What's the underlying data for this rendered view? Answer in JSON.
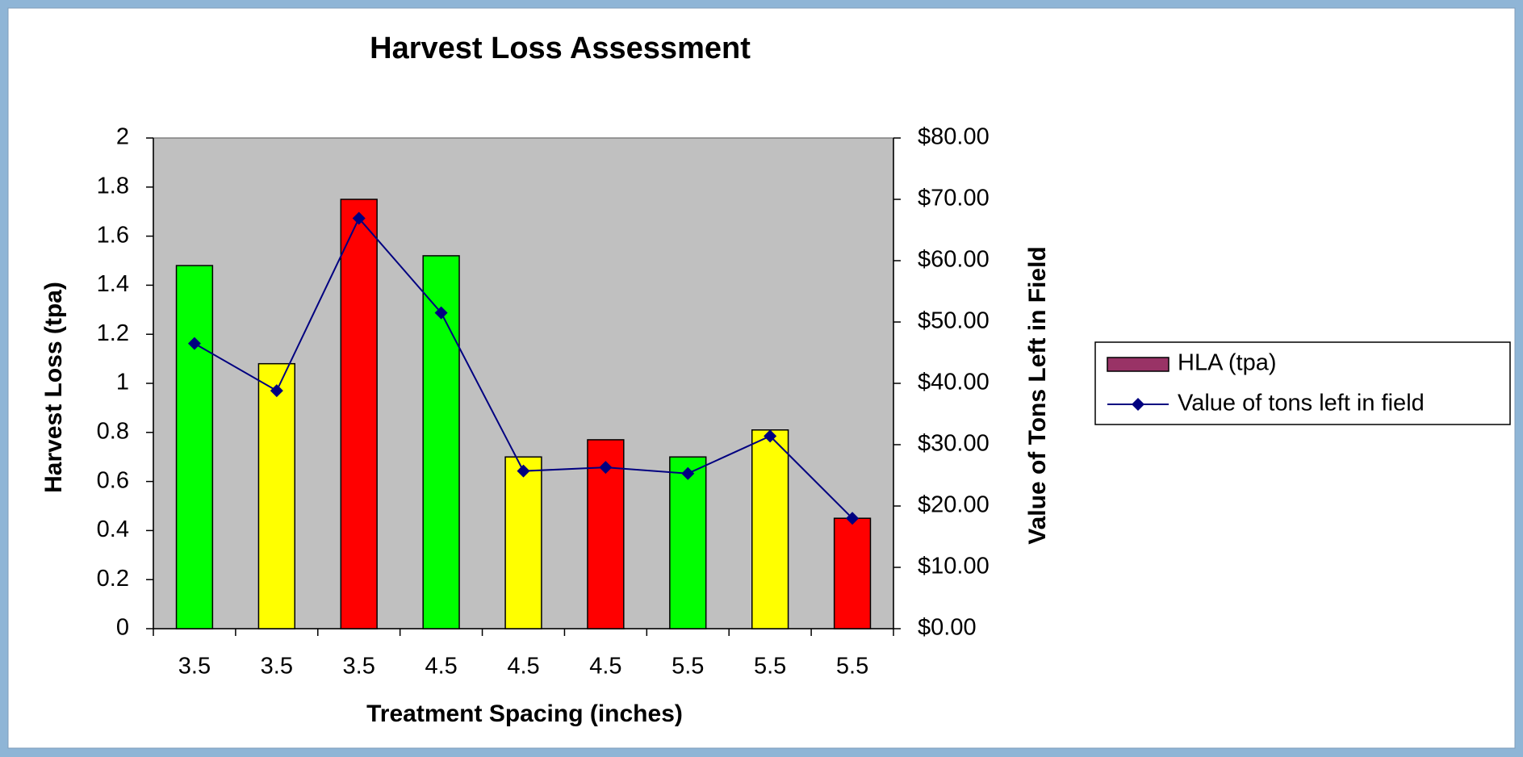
{
  "chart_data": {
    "type": "bar",
    "title": "Harvest Loss Assessment",
    "xlabel": "Treatment Spacing (inches)",
    "ylabel": "Harvest Loss (tpa)",
    "y2label": "Value of Tons Left in Field",
    "categories": [
      "3.5",
      "3.5",
      "3.5",
      "4.5",
      "4.5",
      "4.5",
      "5.5",
      "5.5",
      "5.5"
    ],
    "series": [
      {
        "name": "HLA (tpa)",
        "type": "bar",
        "color": "#993366",
        "colors": [
          "#00ff00",
          "#ffff00",
          "#ff0000",
          "#00ff00",
          "#ffff00",
          "#ff0000",
          "#00ff00",
          "#ffff00",
          "#ff0000"
        ],
        "values": [
          1.48,
          1.08,
          1.75,
          1.52,
          0.7,
          0.77,
          0.7,
          0.81,
          0.45
        ]
      },
      {
        "name": "Value of tons left in field",
        "type": "line",
        "axis": "y2",
        "color": "#000080",
        "values": [
          46.5,
          38.8,
          66.9,
          51.5,
          25.7,
          26.3,
          25.3,
          31.4,
          18.0
        ]
      }
    ],
    "ylim": [
      0,
      2
    ],
    "yticks": [
      0,
      0.2,
      0.4,
      0.6,
      0.8,
      1,
      1.2,
      1.4,
      1.6,
      1.8,
      2
    ],
    "y2lim": [
      0,
      80
    ],
    "y2ticks": [
      {
        "value": 0,
        "label": "$0.00"
      },
      {
        "value": 10,
        "label": "$10.00"
      },
      {
        "value": 20,
        "label": "$20.00"
      },
      {
        "value": 30,
        "label": "$30.00"
      },
      {
        "value": 40,
        "label": "$40.00"
      },
      {
        "value": 50,
        "label": "$50.00"
      },
      {
        "value": 60,
        "label": "$60.00"
      },
      {
        "value": 70,
        "label": "$70.00"
      },
      {
        "value": 80,
        "label": "$80.00"
      }
    ],
    "plot_background": "#c0c0c0",
    "legend": "right"
  }
}
